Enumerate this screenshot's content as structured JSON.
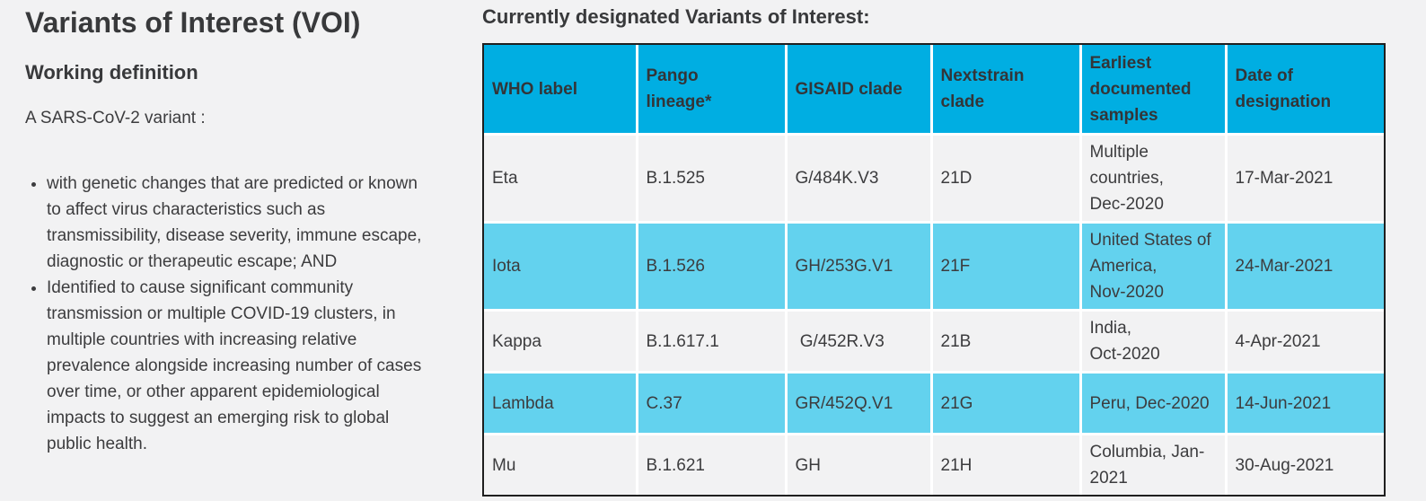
{
  "colors": {
    "page_background": "#f2f2f3",
    "text": "#3c3c3e",
    "table_header_background": "#00aee2",
    "table_highlight_background": "#63d2ee",
    "table_border": "#1f1f1f",
    "cell_separator": "#ffffff"
  },
  "left_panel": {
    "title": "Variants of Interest (VOI)",
    "subtitle": "Working definition",
    "intro": "A SARS-CoV-2 variant :",
    "bullets": [
      "with genetic changes that are predicted or known\nto affect virus characteristics such as\ntransmissibility, disease severity, immune escape,\ndiagnostic or therapeutic escape; AND",
      "Identified to cause significant community\ntransmission or multiple COVID-19 clusters, in\nmultiple countries with increasing relative\nprevalence alongside increasing number of cases\nover time, or other apparent epidemiological\nimpacts to suggest an emerging risk to global\npublic health."
    ]
  },
  "right_panel": {
    "heading": "Currently designated Variants of Interest:",
    "table": {
      "columns": [
        "WHO label",
        "Pango\nlineage*",
        "GISAID clade",
        "Nextstrain\nclade",
        "Earliest\ndocumented\nsamples",
        "Date of\ndesignation"
      ],
      "rows": [
        {
          "who_label": "Eta",
          "pango_lineage": "B.1.525",
          "gisaid_clade": "G/484K.V3",
          "nextstrain_clade": "21D",
          "earliest_samples": "Multiple\ncountries,\nDec-2020",
          "date_of_designation": "17-Mar-2021",
          "highlighted": false
        },
        {
          "who_label": "Iota",
          "pango_lineage": "B.1.526",
          "gisaid_clade": "GH/253G.V1",
          "nextstrain_clade": "21F",
          "earliest_samples": "United States of\nAmerica,\nNov-2020",
          "date_of_designation": "24-Mar-2021",
          "highlighted": true
        },
        {
          "who_label": "Kappa",
          "pango_lineage": "B.1.617.1",
          "gisaid_clade": " G/452R.V3",
          "nextstrain_clade": "21B",
          "earliest_samples": "India,\nOct-2020",
          "date_of_designation": "4-Apr-2021",
          "highlighted": false
        },
        {
          "who_label": "Lambda",
          "pango_lineage": "C.37",
          "gisaid_clade": "GR/452Q.V1",
          "nextstrain_clade": "21G",
          "earliest_samples": "Peru, Dec-2020",
          "date_of_designation": "14-Jun-2021",
          "highlighted": true
        },
        {
          "who_label": "Mu",
          "pango_lineage": "B.1.621",
          "gisaid_clade": "GH",
          "nextstrain_clade": "21H",
          "earliest_samples": "Columbia, Jan-\n2021",
          "date_of_designation": "30-Aug-2021",
          "highlighted": false
        }
      ]
    }
  }
}
